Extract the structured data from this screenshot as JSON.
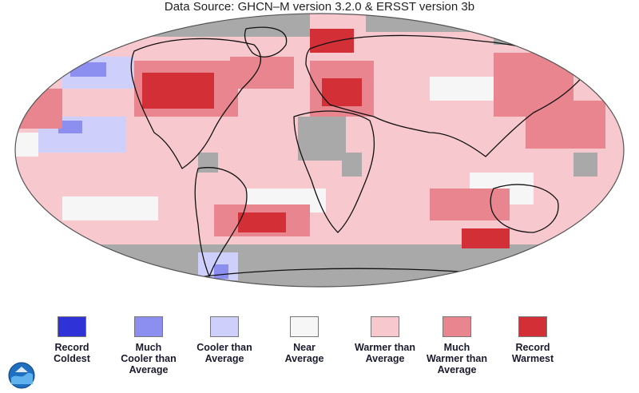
{
  "header": {
    "source_text": "Data Source: GHCN–M version 3.2.0 & ERSST version 3b"
  },
  "colors": {
    "record_coldest": "#2f32d6",
    "much_cooler": "#8d8ff0",
    "cooler": "#cfcffb",
    "near": "#f6f6f6",
    "warmer": "#f7c9ce",
    "much_warmer": "#e8858e",
    "record_warmest": "#d22f37",
    "missing": "#a9a9a9",
    "coast": "#111111"
  },
  "legend": {
    "items": [
      {
        "label": "Record\nColdest",
        "color": "#2f32d6"
      },
      {
        "label": "Much\nCooler than\nAverage",
        "color": "#8d8ff0"
      },
      {
        "label": "Cooler than\nAverage",
        "color": "#cfcffb"
      },
      {
        "label": "Near\nAverage",
        "color": "#f6f6f6"
      },
      {
        "label": "Warmer than\nAverage",
        "color": "#f7c9ce"
      },
      {
        "label": "Much\nWarmer than\nAverage",
        "color": "#e8858e"
      },
      {
        "label": "Record\nWarmest",
        "color": "#d22f37"
      }
    ]
  },
  "logo": {
    "icon": "noaa-logo-icon"
  }
}
